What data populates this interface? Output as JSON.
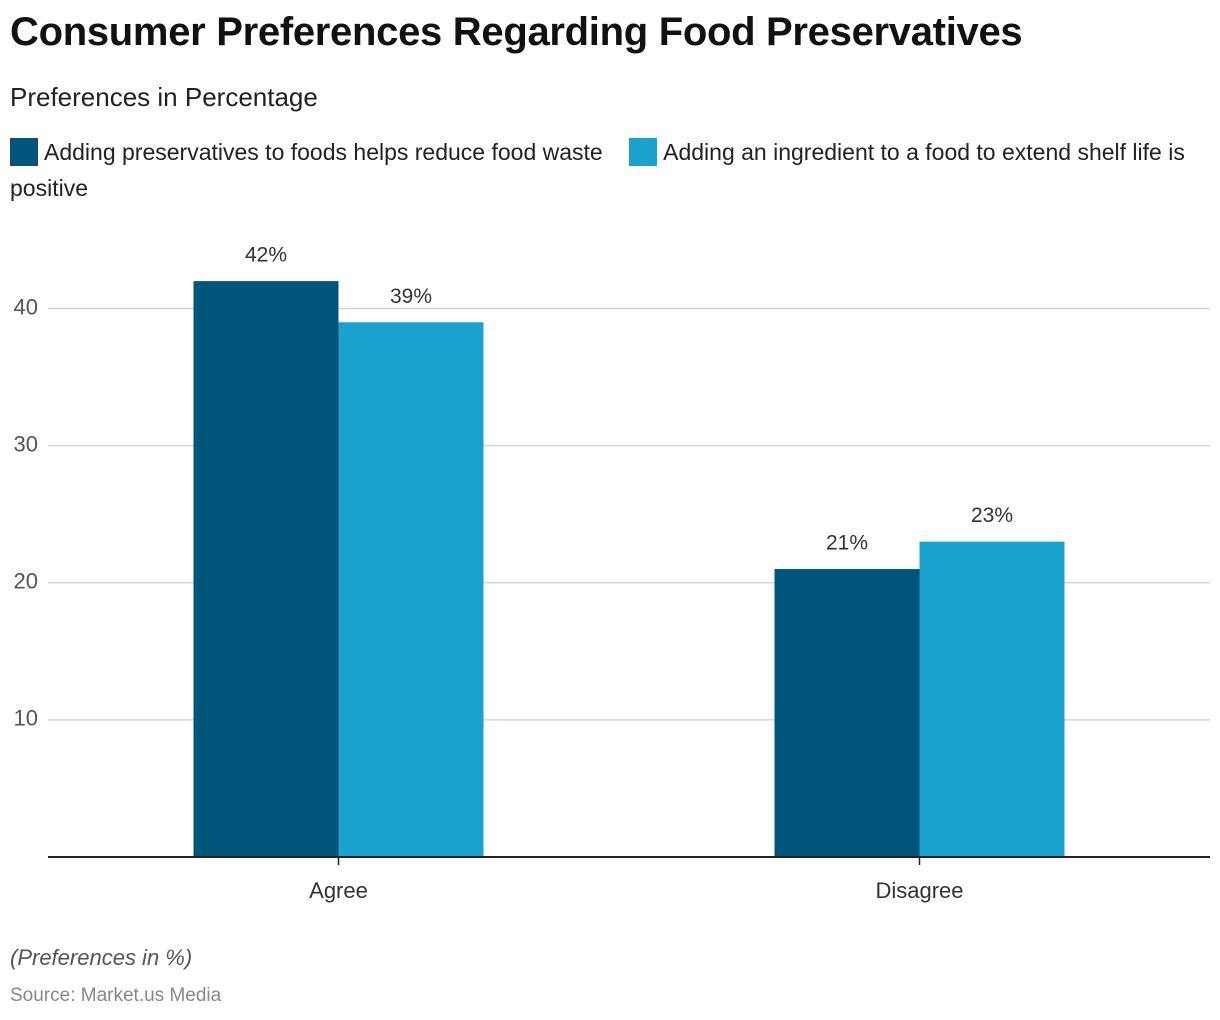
{
  "chart_data": {
    "type": "bar",
    "title": "Consumer Preferences Regarding Food Preservatives",
    "subtitle": "Preferences in Percentage",
    "categories": [
      "Agree",
      "Disagree"
    ],
    "series": [
      {
        "name": "Adding preservatives to foods helps reduce food waste",
        "color": "#00557c",
        "values": [
          42,
          21
        ],
        "value_labels": [
          "42%",
          "21%"
        ]
      },
      {
        "name": "Adding an ingredient to a food to extend shelf life is positive",
        "color": "#1aa1cd",
        "values": [
          39,
          23
        ],
        "value_labels": [
          "39%",
          "23%"
        ]
      }
    ],
    "ylim": [
      0,
      45
    ],
    "yticks": [
      10,
      20,
      30,
      40
    ],
    "grid": true,
    "note": "(Preferences in %)",
    "source": "Source: Market.us Media"
  }
}
